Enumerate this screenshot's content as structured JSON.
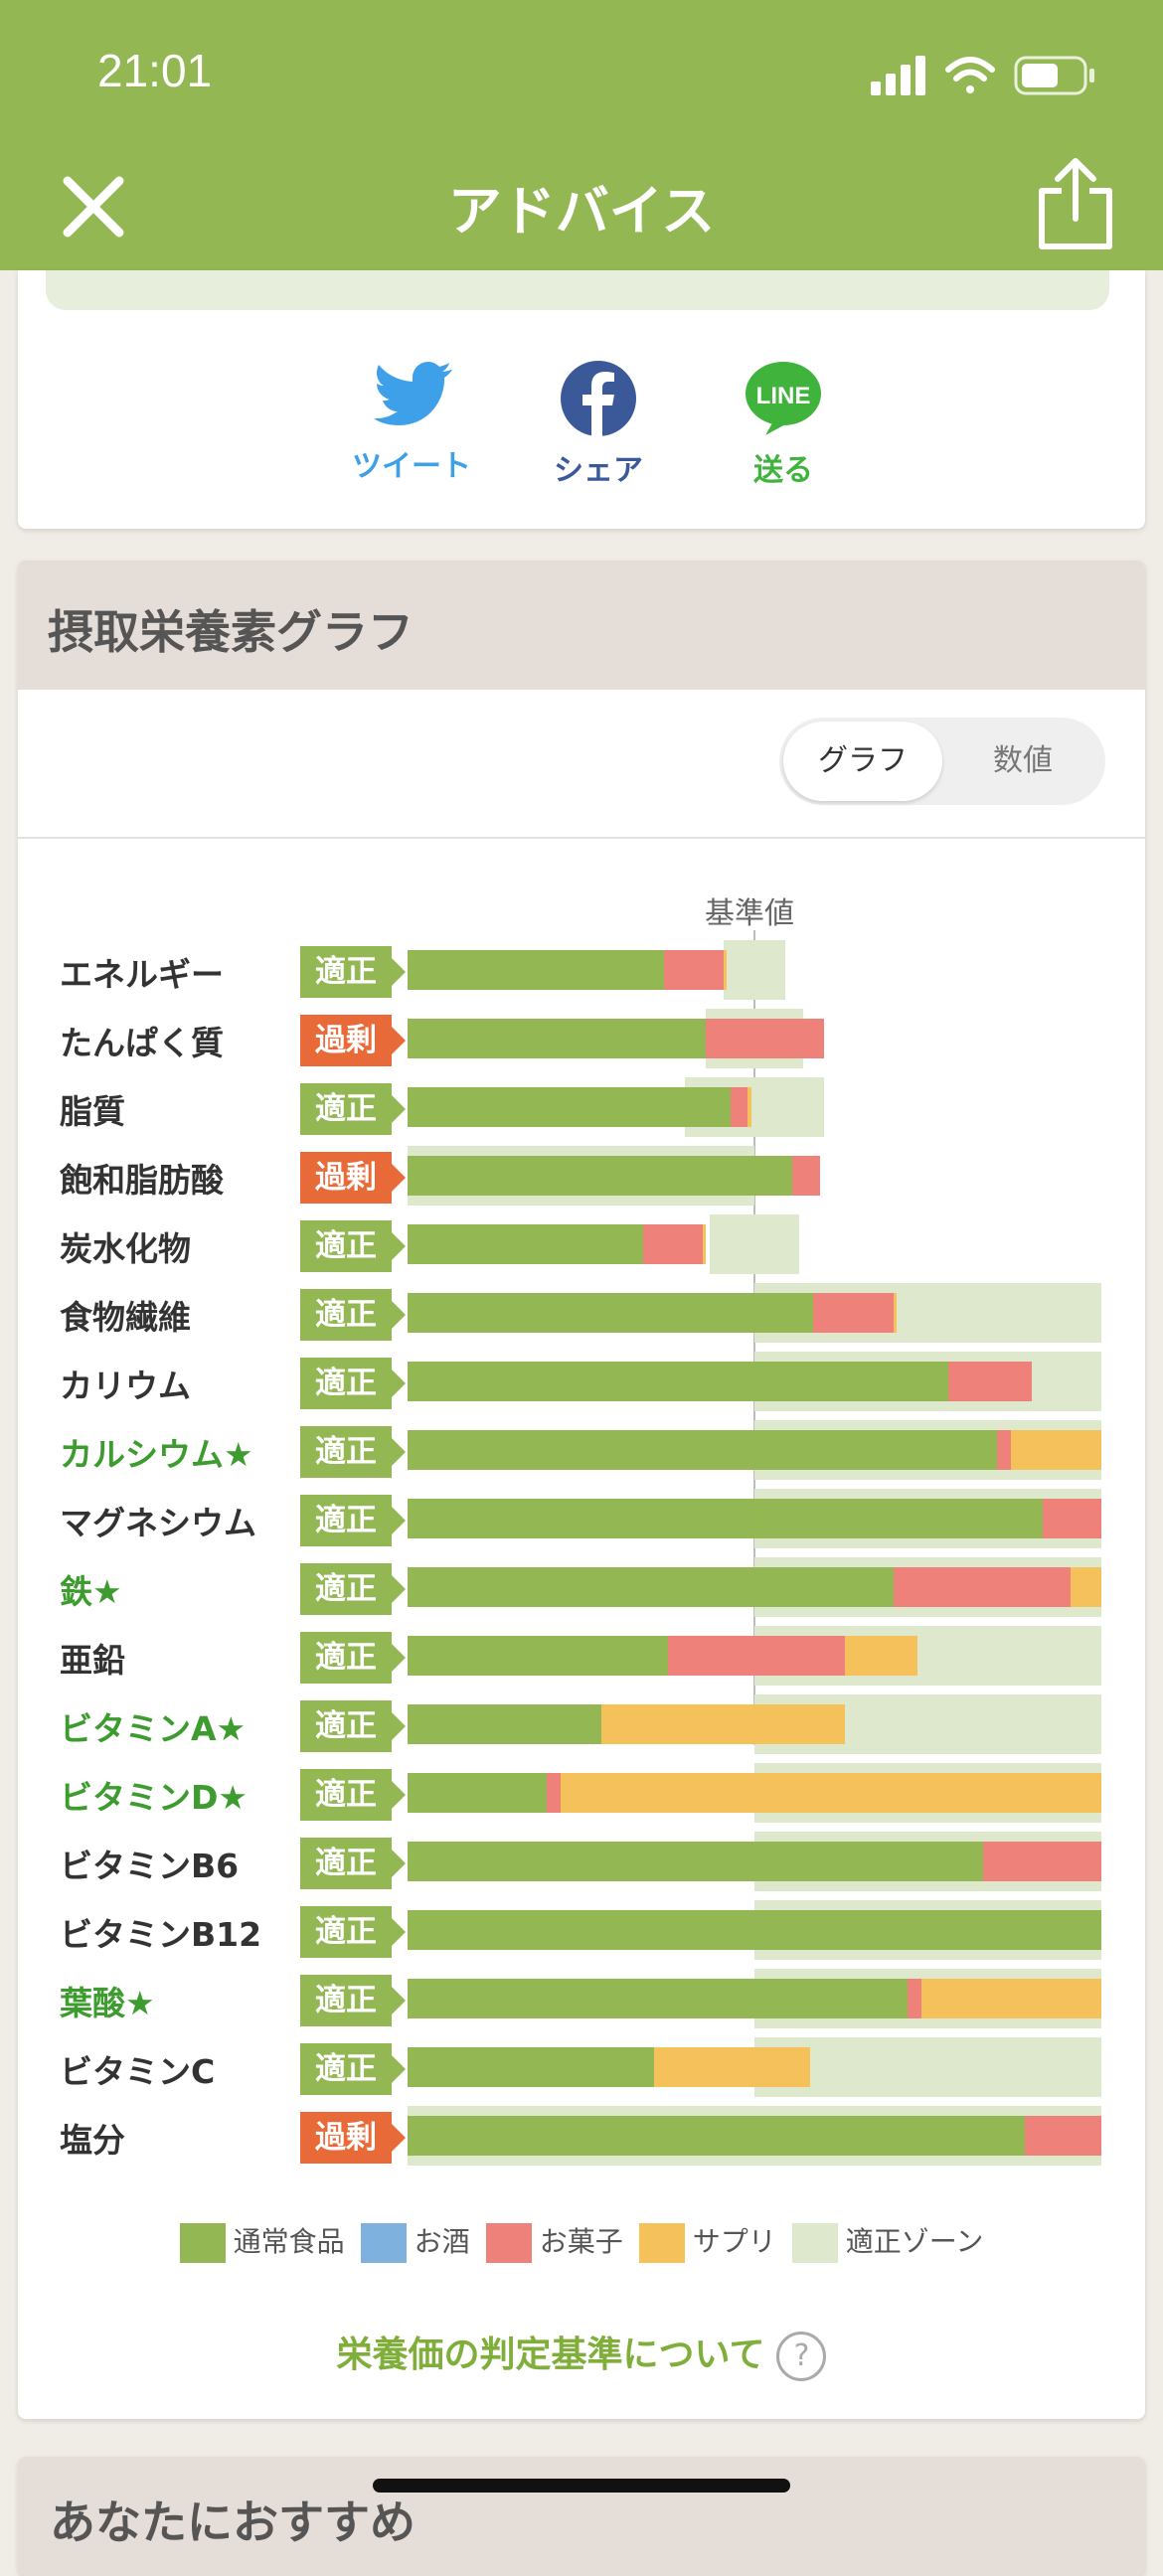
{
  "status": {
    "time": "21:01"
  },
  "nav": {
    "title": "アドバイス"
  },
  "share": {
    "tweet": "ツイート",
    "facebook": "シェア",
    "line": "送る",
    "line_logo": "LINE"
  },
  "graph_card": {
    "title": "摂取栄養素グラフ",
    "toggle": {
      "graph": "グラフ",
      "values": "数値"
    },
    "reference_label": "基準値"
  },
  "colors": {
    "food": "#93b752",
    "alcohol": "#7eb1dd",
    "snack": "#ee8179",
    "supplement": "#f4c15b",
    "zone": "#dde8cc",
    "ok_badge": "#93b752",
    "over_badge": "#e86a39"
  },
  "chart_data": {
    "type": "bar",
    "stacked": true,
    "reference": 100,
    "categories": [
      "エネルギー",
      "たんぱく質",
      "脂質",
      "飽和脂肪酸",
      "炭水化物",
      "食物繊維",
      "カリウム",
      "カルシウム★",
      "マグネシウム",
      "鉄★",
      "亜鉛",
      "ビタミンA★",
      "ビタミンD★",
      "ビタミンB6",
      "ビタミンB12",
      "葉酸★",
      "ビタミンC",
      "塩分"
    ],
    "status": [
      "適正",
      "過剰",
      "適正",
      "過剰",
      "適正",
      "適正",
      "適正",
      "適正",
      "適正",
      "適正",
      "適正",
      "適正",
      "適正",
      "適正",
      "適正",
      "適正",
      "適正",
      "過剰"
    ],
    "starred": [
      false,
      false,
      false,
      false,
      false,
      false,
      false,
      true,
      false,
      true,
      false,
      true,
      true,
      false,
      false,
      true,
      false,
      false
    ],
    "series": [
      {
        "name": "通常食品",
        "values": [
          74,
          86,
          93,
          111,
          68,
          117,
          156,
          170,
          183,
          140,
          75,
          56,
          40,
          166,
          200,
          144,
          71,
          178
        ]
      },
      {
        "name": "お酒",
        "values": [
          0,
          0,
          0,
          0,
          0,
          0,
          0,
          0,
          0,
          0,
          0,
          0,
          0,
          0,
          0,
          0,
          0,
          0
        ]
      },
      {
        "name": "お菓子",
        "values": [
          17,
          34,
          5,
          8,
          17,
          23,
          24,
          4,
          17,
          51,
          51,
          0,
          4,
          35,
          0,
          4,
          0,
          22
        ]
      },
      {
        "name": "サプリ",
        "values": [
          1,
          0,
          1,
          0,
          1,
          1,
          0,
          26,
          0,
          9,
          21,
          70,
          156,
          0,
          0,
          52,
          45,
          0
        ]
      }
    ],
    "zone": [
      [
        91,
        109
      ],
      [
        86,
        114
      ],
      [
        80,
        120
      ],
      [
        0,
        100
      ],
      [
        87,
        113
      ],
      [
        100,
        200
      ],
      [
        100,
        200
      ],
      [
        100,
        200
      ],
      [
        100,
        200
      ],
      [
        100,
        200
      ],
      [
        100,
        200
      ],
      [
        100,
        200
      ],
      [
        100,
        200
      ],
      [
        100,
        200
      ],
      [
        100,
        200
      ],
      [
        100,
        200
      ],
      [
        100,
        200
      ],
      [
        0,
        200
      ]
    ],
    "xlim": [
      0,
      200
    ],
    "legend": [
      "通常食品",
      "お酒",
      "お菓子",
      "サプリ",
      "適正ゾーン"
    ]
  },
  "criteria_link": "栄養価の判定基準について",
  "next_card": {
    "title": "あなたにおすすめ"
  }
}
